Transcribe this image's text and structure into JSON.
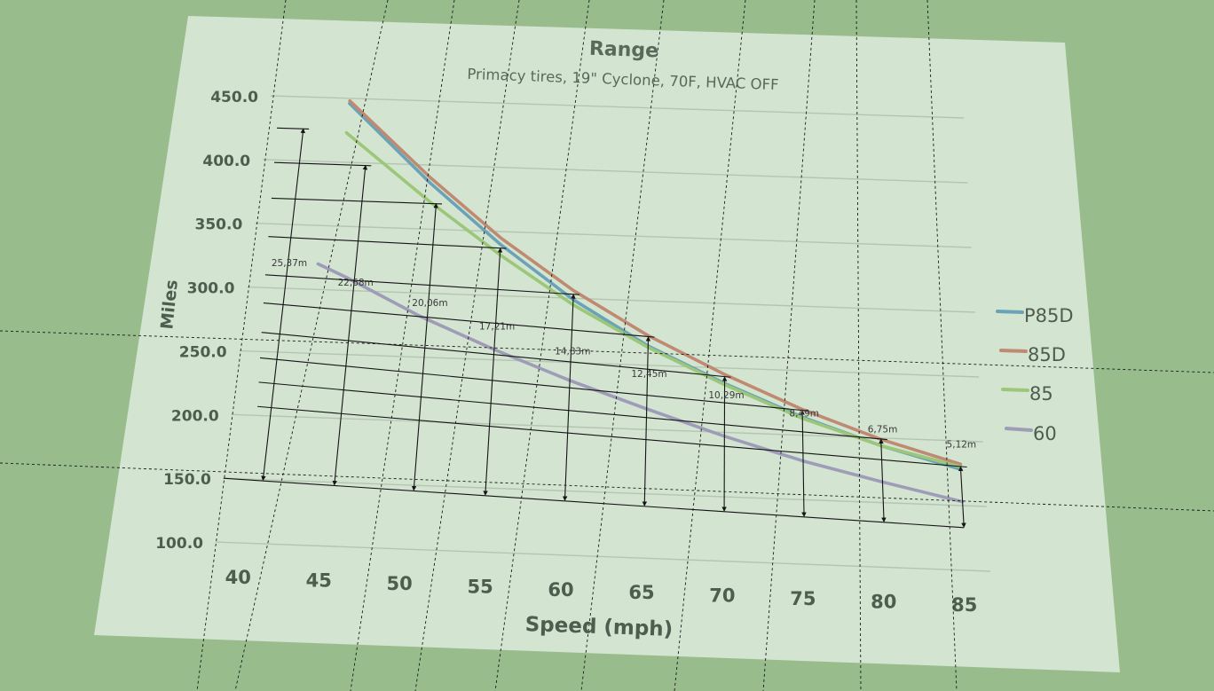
{
  "chart_data": {
    "type": "line",
    "title": "Range",
    "subtitle": "Primacy tires, 19\" Cyclone, 70F, HVAC OFF",
    "xlabel": "Speed (mph)",
    "ylabel": "Miles",
    "x_ticks": [
      "40",
      "45",
      "50",
      "55",
      "60",
      "65",
      "70",
      "75",
      "80",
      "85"
    ],
    "y_ticks": [
      "100.0",
      "150.0",
      "200.0",
      "250.0",
      "300.0",
      "350.0",
      "400.0",
      "450.0"
    ],
    "xlim": [
      38.5,
      86.5
    ],
    "ylim": [
      100,
      450
    ],
    "grid": "horizontal",
    "legend_position": "right",
    "colors": {
      "background": "#98bc8c",
      "sheet": "#d3e4d1",
      "P85D": "#6aa3b8",
      "85D": "#c08a72",
      "85": "#9cc778",
      "60": "#9f9cb8"
    },
    "series": [
      {
        "name": "P85D",
        "x": [
          44,
          50,
          55,
          60,
          65,
          70,
          75,
          80,
          85
        ],
        "y": [
          446,
          386,
          340,
          299,
          265,
          238,
          214,
          194,
          178
        ]
      },
      {
        "name": "85D",
        "x": [
          44,
          50,
          55,
          60,
          65,
          70,
          75,
          80,
          85
        ],
        "y": [
          448,
          390,
          345,
          306,
          273,
          245,
          220,
          199,
          182
        ]
      },
      {
        "name": "85",
        "x": [
          44,
          50,
          55,
          60,
          65,
          70,
          75,
          80,
          85
        ],
        "y": [
          423,
          372,
          332,
          295,
          264,
          237,
          213,
          194,
          180
        ]
      },
      {
        "name": "60",
        "x": [
          43,
          45,
          50,
          55,
          60,
          65,
          70,
          75,
          80,
          85
        ],
        "y": [
          320,
          310,
          282,
          258,
          236,
          216,
          197,
          180,
          166,
          153
        ]
      }
    ],
    "annotations": [
      {
        "label": "25,37m",
        "x": 41
      },
      {
        "label": "22,68m",
        "x": 45.5
      },
      {
        "label": "20,06m",
        "x": 50.5
      },
      {
        "label": "17,21m",
        "x": 55
      },
      {
        "label": "14,83m",
        "x": 60
      },
      {
        "label": "12,45m",
        "x": 65
      },
      {
        "label": "10,29m",
        "x": 70
      },
      {
        "label": "8,49m",
        "x": 75
      },
      {
        "label": "6,75m",
        "x": 80
      },
      {
        "label": "5,12m",
        "x": 85
      }
    ]
  }
}
